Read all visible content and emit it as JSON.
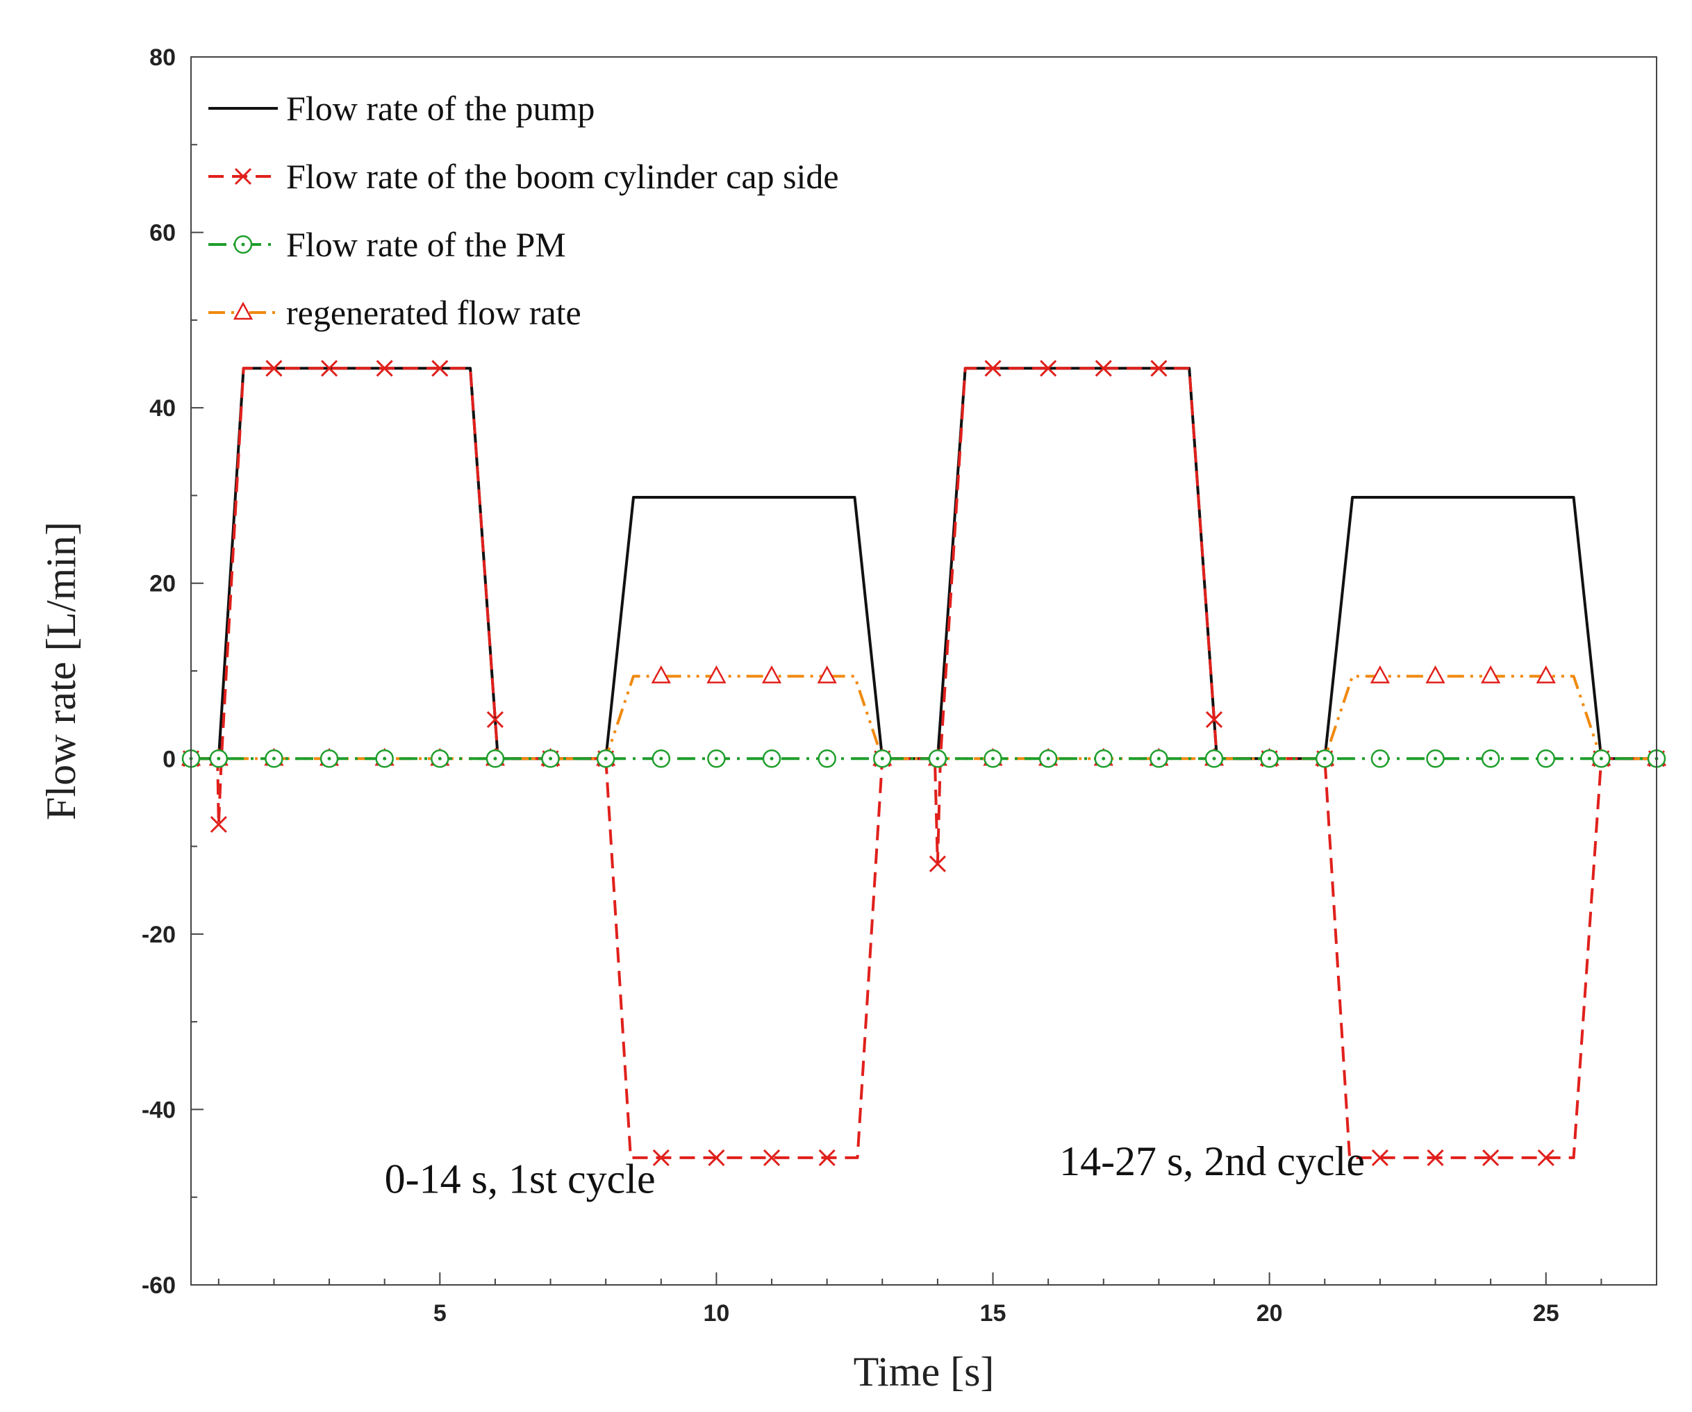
{
  "chart_data": {
    "type": "line",
    "title": "",
    "xlabel": "Time [s]",
    "ylabel": "Flow rate [L/min]",
    "xlim": [
      0.5,
      27
    ],
    "ylim": [
      -60,
      80
    ],
    "x_ticks": [
      5,
      10,
      15,
      20,
      25
    ],
    "x_tick_labels": [
      "5",
      "10",
      "15",
      "20",
      "25"
    ],
    "y_ticks": [
      -60,
      -40,
      -20,
      0,
      20,
      40,
      60,
      80
    ],
    "y_tick_labels": [
      "-60",
      "-40",
      "-20",
      "0",
      "20",
      "40",
      "60",
      "80"
    ],
    "legend_position": "top-left",
    "series": [
      {
        "name": "Flow rate of the pump",
        "color": "#111111",
        "line_style": "solid",
        "marker": "none",
        "x": [
          0.5,
          1.0,
          1.45,
          5.55,
          6.05,
          8.0,
          8.5,
          12.5,
          13.0,
          14.0,
          14.5,
          18.55,
          19.05,
          21.0,
          21.5,
          25.5,
          26.0,
          27.0
        ],
        "y": [
          0,
          0,
          44.5,
          44.5,
          0,
          0,
          29.8,
          29.8,
          0,
          0,
          44.5,
          44.5,
          0,
          0,
          29.8,
          29.8,
          0,
          0
        ]
      },
      {
        "name": "Flow rate of the boom cylinder cap side",
        "color": "#e0201c",
        "line_style": "dashed",
        "marker": "x",
        "x": [
          0.5,
          0.98,
          1.0,
          1.05,
          1.45,
          5.55,
          6.05,
          8.0,
          8.45,
          12.55,
          13.0,
          13.95,
          14.0,
          14.05,
          14.5,
          18.55,
          19.05,
          21.0,
          21.45,
          25.5,
          26.0,
          27.0
        ],
        "y": [
          0,
          0,
          -7.5,
          0,
          44.5,
          44.5,
          0,
          0,
          -45.5,
          -45.5,
          0,
          0,
          -12,
          0,
          44.5,
          44.5,
          0,
          0,
          -45.5,
          -45.5,
          0,
          0
        ],
        "marker_x": [
          0.5,
          1,
          2,
          3,
          4,
          5,
          6,
          7,
          8,
          9,
          10,
          11,
          12,
          13,
          14,
          15,
          16,
          17,
          18,
          19,
          20,
          21,
          22,
          23,
          24,
          25,
          26,
          27
        ]
      },
      {
        "name": "Flow rate of the PM",
        "color": "#1f9e2c",
        "line_style": "dash-dot",
        "marker": "circle-dot",
        "x": [
          0.5,
          27.0
        ],
        "y": [
          0,
          0
        ],
        "marker_x": [
          0.5,
          1,
          2,
          3,
          4,
          5,
          6,
          7,
          8,
          9,
          10,
          11,
          12,
          13,
          14,
          15,
          16,
          17,
          18,
          19,
          20,
          21,
          22,
          23,
          24,
          25,
          26,
          27
        ]
      },
      {
        "name": "regenerated flow rate",
        "color": "#f08a10",
        "line_style": "dash-dot-dot",
        "marker": "triangle",
        "x": [
          0.5,
          8.0,
          8.5,
          12.5,
          13.0,
          21.0,
          21.5,
          25.5,
          26.0,
          27.0
        ],
        "y": [
          0,
          0,
          9.4,
          9.4,
          0,
          0,
          9.4,
          9.4,
          0,
          0
        ],
        "marker_x": [
          0.5,
          1,
          2,
          3,
          4,
          5,
          6,
          7,
          8,
          9,
          10,
          11,
          12,
          13,
          14,
          15,
          16,
          17,
          18,
          19,
          20,
          21,
          22,
          23,
          24,
          25,
          26,
          27
        ]
      }
    ],
    "annotations": [
      {
        "text": "0-14 s, 1st cycle",
        "x": 4.0,
        "y": -49.5
      },
      {
        "text": "14-27 s, 2nd cycle",
        "x": 16.2,
        "y": -47.5
      }
    ]
  }
}
